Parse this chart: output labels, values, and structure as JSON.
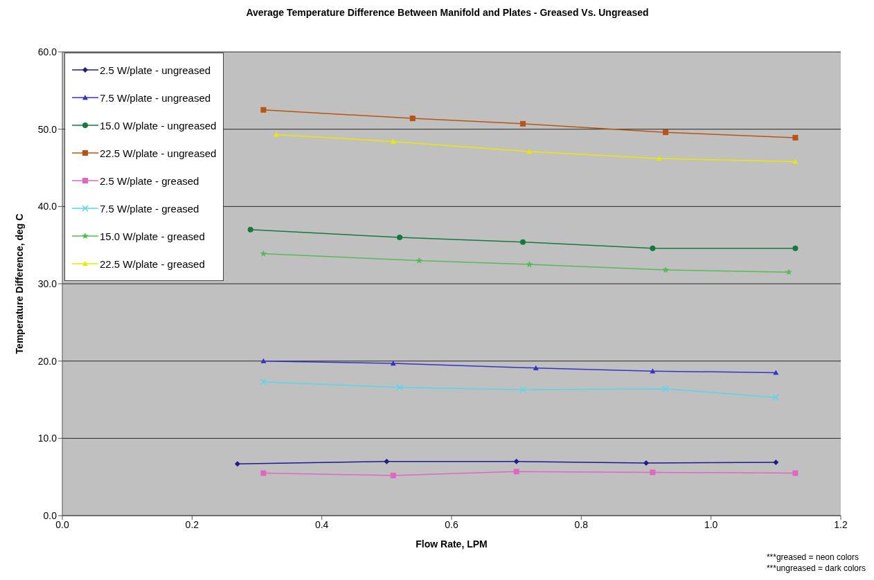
{
  "chart_data": {
    "type": "line",
    "title": "Average Temperature Difference Between Manifold and Plates - Greased Vs. Ungreased",
    "xlabel": "Flow Rate, LPM",
    "ylabel": "Temperature Difference, deg C",
    "annotations": [
      "***greased = neon colors",
      "***ungreased = dark colors"
    ],
    "xlim": [
      0,
      1.2
    ],
    "xticks": [
      {
        "value": 0,
        "label": "0.0"
      },
      {
        "value": 0.2,
        "label": "0.2"
      },
      {
        "value": 0.4,
        "label": "0.4"
      },
      {
        "value": 0.6,
        "label": "0.6"
      },
      {
        "value": 0.8,
        "label": "0.8"
      },
      {
        "value": 1,
        "label": "1.0"
      },
      {
        "value": 1.2,
        "label": "1.2"
      }
    ],
    "ylim": [
      0,
      60
    ],
    "yticks": [
      {
        "value": 0,
        "label": "0.0"
      },
      {
        "value": 10,
        "label": "10.0"
      },
      {
        "value": 20,
        "label": "20.0"
      },
      {
        "value": 30,
        "label": "30.0"
      },
      {
        "value": 40,
        "label": "40.0"
      },
      {
        "value": 50,
        "label": "50.0"
      },
      {
        "value": 60,
        "label": "60.0"
      }
    ],
    "grid": "y",
    "legend": "top left",
    "line_style": "solid",
    "series": [
      {
        "name": "2.5 W/plate - ungreased",
        "color": "#1c1c8c",
        "marker": "diamond",
        "x": [
          0.27,
          0.5,
          0.7,
          0.9,
          1.1
        ],
        "values": [
          6.7,
          7.0,
          7.0,
          6.8,
          6.9
        ]
      },
      {
        "name": "7.5 W/plate - ungreased",
        "color": "#3333cc",
        "marker": "triangle",
        "x": [
          0.31,
          0.51,
          0.73,
          0.91,
          1.1
        ],
        "values": [
          20.0,
          19.7,
          19.1,
          18.7,
          18.5
        ]
      },
      {
        "name": "15.0 W/plate - ungreased",
        "color": "#127a3c",
        "marker": "circle",
        "x": [
          0.29,
          0.52,
          0.71,
          0.91,
          1.13
        ],
        "values": [
          37.0,
          36.0,
          35.4,
          34.6,
          34.6
        ]
      },
      {
        "name": "22.5 W/plate - ungreased",
        "color": "#b85410",
        "marker": "square",
        "x": [
          0.31,
          0.54,
          0.71,
          0.93,
          1.13
        ],
        "values": [
          52.5,
          51.4,
          50.7,
          49.6,
          48.9
        ]
      },
      {
        "name": "2.5 W/plate - greased",
        "color": "#e066c0",
        "marker": "square",
        "x": [
          0.31,
          0.51,
          0.7,
          0.91,
          1.13
        ],
        "values": [
          5.5,
          5.2,
          5.7,
          5.6,
          5.5
        ]
      },
      {
        "name": "7.5 W/plate - greased",
        "color": "#55d8ee",
        "marker": "cross",
        "x": [
          0.31,
          0.52,
          0.71,
          0.93,
          1.1
        ],
        "values": [
          17.3,
          16.6,
          16.3,
          16.4,
          15.3
        ]
      },
      {
        "name": "15.0 W/plate - greased",
        "color": "#55bb55",
        "marker": "star",
        "x": [
          0.31,
          0.55,
          0.72,
          0.93,
          1.12
        ],
        "values": [
          33.9,
          33.0,
          32.5,
          31.8,
          31.5
        ]
      },
      {
        "name": "22.5 W/plate - greased",
        "color": "#e8e800",
        "marker": "triangle",
        "x": [
          0.33,
          0.51,
          0.72,
          0.92,
          1.13
        ],
        "values": [
          49.3,
          48.4,
          47.1,
          46.2,
          45.8
        ]
      }
    ]
  }
}
